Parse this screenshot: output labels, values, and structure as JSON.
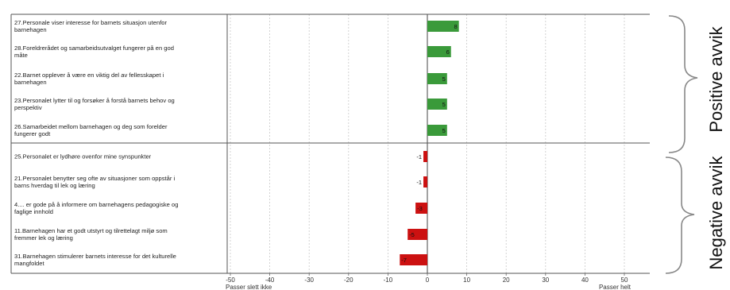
{
  "chart_data": {
    "type": "bar",
    "orientation": "horizontal",
    "xlim": [
      -50,
      50
    ],
    "x_ticks": [
      -50,
      -40,
      -30,
      -20,
      -10,
      0,
      10,
      20,
      30,
      40,
      50
    ],
    "x_left_caption": "Passer slett ikke",
    "x_right_caption": "Passer helt",
    "grid": true,
    "groups": [
      {
        "label": "Positive avvik",
        "color": "#3a9a3a",
        "items": [
          {
            "label_lines": [
              "27.Personale viser interesse for barnets situasjon utenfor",
              "barnehagen"
            ],
            "value": 8
          },
          {
            "label_lines": [
              "28.Foreldrerådet og samarbeidsutvalget fungerer på en god",
              "måte"
            ],
            "value": 6
          },
          {
            "label_lines": [
              "22.Barnet opplever å være en viktig del av fellesskapet i",
              "barnehagen"
            ],
            "value": 5
          },
          {
            "label_lines": [
              "23.Personalet lytter til og forsøker å forstå barnets behov og",
              "perspektiv"
            ],
            "value": 5
          },
          {
            "label_lines": [
              "26.Samarbeidet mellom barnehagen og deg som forelder",
              "fungerer godt"
            ],
            "value": 5
          }
        ]
      },
      {
        "label": "Negative avvik",
        "color": "#cc1111",
        "items": [
          {
            "label_lines": [
              "25.Personalet er lydhøre ovenfor mine synspunkter"
            ],
            "value": -1
          },
          {
            "label_lines": [
              "21.Personalet benytter seg ofte av situasjoner som oppstår i",
              "barns hverdag til lek og læring"
            ],
            "value": -1
          },
          {
            "label_lines": [
              "4.... er gode på å informere om barnehagens pedagogiske og",
              "faglige innhold"
            ],
            "value": -3
          },
          {
            "label_lines": [
              "11.Barnehagen har et godt utstyrt og tilrettelagt miljø som",
              "fremmer lek og læring"
            ],
            "value": -5
          },
          {
            "label_lines": [
              "31.Barnehagen stimulerer barnets interesse for det kulturelle",
              "mangfoldet"
            ],
            "value": -7
          }
        ]
      }
    ]
  }
}
